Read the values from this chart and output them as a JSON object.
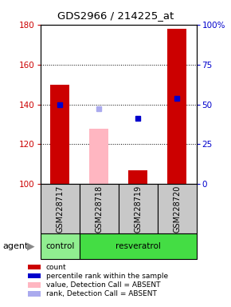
{
  "title": "GDS2966 / 214225_at",
  "samples": [
    "GSM228717",
    "GSM228718",
    "GSM228719",
    "GSM228720"
  ],
  "ylim_left": [
    100,
    180
  ],
  "ylim_right": [
    0,
    100
  ],
  "yticks_left": [
    100,
    120,
    140,
    160,
    180
  ],
  "yticks_right": [
    0,
    25,
    50,
    75,
    100
  ],
  "ytick_labels_right": [
    "0",
    "25",
    "50",
    "75",
    "100%"
  ],
  "red_bar_values": [
    150,
    null,
    107,
    178
  ],
  "pink_bar_values": [
    null,
    128,
    null,
    null
  ],
  "blue_dot_values": [
    140,
    null,
    133,
    143
  ],
  "lightblue_dot_values": [
    null,
    138,
    null,
    null
  ],
  "agent_groups": [
    {
      "label": "control",
      "samples": [
        0
      ],
      "color": "#90EE90"
    },
    {
      "label": "resveratrol",
      "samples": [
        1,
        2,
        3
      ],
      "color": "#44DD44"
    }
  ],
  "agent_label": "agent",
  "bar_width": 0.5,
  "red_color": "#CC0000",
  "pink_color": "#FFB6C1",
  "blue_color": "#0000CC",
  "lightblue_color": "#AAAAEE",
  "bg_plot": "#FFFFFF",
  "bg_sample": "#C8C8C8",
  "legend_items": [
    {
      "color": "#CC0000",
      "label": "count"
    },
    {
      "color": "#0000CC",
      "label": "percentile rank within the sample"
    },
    {
      "color": "#FFB6C1",
      "label": "value, Detection Call = ABSENT"
    },
    {
      "color": "#AAAAEE",
      "label": "rank, Detection Call = ABSENT"
    }
  ]
}
